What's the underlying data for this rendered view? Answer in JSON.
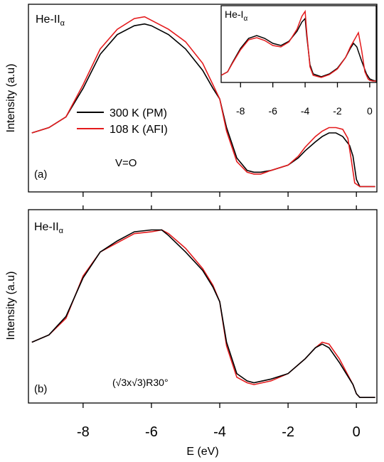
{
  "figure": {
    "xlabel": "E (eV)",
    "ylabel": "Intensity (a.u)",
    "x_ticks": [
      -8,
      -6,
      -4,
      -2,
      0
    ]
  },
  "chart_data": [
    {
      "type": "line",
      "panel": "a",
      "panel_label": "(a)",
      "source_label": {
        "base": "He-II",
        "sub": "α"
      },
      "annotation": "V=O",
      "ylabel": "Intensity (a.u)",
      "xlim": [
        -9.6,
        0.6
      ],
      "ylim": [
        0,
        1.05
      ],
      "legend_position": "center-left",
      "series": [
        {
          "name": "300 K (PM)",
          "color": "#000000",
          "x": [
            -9.5,
            -9.0,
            -8.5,
            -8.0,
            -7.5,
            -7.0,
            -6.5,
            -6.2,
            -6.0,
            -5.5,
            -5.0,
            -4.5,
            -4.2,
            -4.0,
            -3.8,
            -3.5,
            -3.2,
            -3.0,
            -2.8,
            -2.5,
            -2.0,
            -1.7,
            -1.5,
            -1.2,
            -1.0,
            -0.8,
            -0.6,
            -0.4,
            -0.2,
            -0.1,
            0.0,
            0.1,
            0.3,
            0.55
          ],
          "y": [
            0.33,
            0.36,
            0.42,
            0.58,
            0.77,
            0.88,
            0.93,
            0.94,
            0.93,
            0.88,
            0.8,
            0.68,
            0.58,
            0.52,
            0.36,
            0.19,
            0.12,
            0.11,
            0.11,
            0.12,
            0.15,
            0.19,
            0.23,
            0.28,
            0.31,
            0.33,
            0.33,
            0.31,
            0.26,
            0.2,
            0.07,
            0.03,
            0.03,
            0.03
          ]
        },
        {
          "name": "108 K (AFI)",
          "color": "#e41a1c",
          "x": [
            -9.5,
            -9.0,
            -8.5,
            -8.0,
            -7.5,
            -7.0,
            -6.5,
            -6.2,
            -6.0,
            -5.5,
            -5.0,
            -4.5,
            -4.2,
            -4.0,
            -3.8,
            -3.5,
            -3.2,
            -3.0,
            -2.8,
            -2.5,
            -2.0,
            -1.7,
            -1.5,
            -1.2,
            -1.0,
            -0.8,
            -0.6,
            -0.4,
            -0.25,
            -0.15,
            -0.05,
            0.1,
            0.3,
            0.55
          ],
          "y": [
            0.33,
            0.36,
            0.42,
            0.6,
            0.8,
            0.91,
            0.97,
            0.98,
            0.96,
            0.91,
            0.84,
            0.72,
            0.6,
            0.52,
            0.34,
            0.17,
            0.11,
            0.1,
            0.1,
            0.12,
            0.15,
            0.2,
            0.25,
            0.31,
            0.34,
            0.36,
            0.36,
            0.35,
            0.3,
            0.18,
            0.05,
            0.03,
            0.03,
            0.03
          ]
        }
      ]
    },
    {
      "type": "line",
      "panel": "inset",
      "source_label": {
        "base": "He-I",
        "sub": "α"
      },
      "xlim": [
        -9.2,
        0.4
      ],
      "ylim": [
        0,
        1.08
      ],
      "x_ticks": [
        -8,
        -6,
        -4,
        -2,
        0
      ],
      "series": [
        {
          "name": "300 K (PM)",
          "color": "#000000",
          "x": [
            -9.2,
            -8.8,
            -8.5,
            -8.0,
            -7.5,
            -7.0,
            -6.5,
            -6.0,
            -5.5,
            -5.0,
            -4.5,
            -4.2,
            -4.0,
            -3.9,
            -3.7,
            -3.5,
            -3.0,
            -2.5,
            -2.0,
            -1.5,
            -1.2,
            -1.0,
            -0.8,
            -0.5,
            -0.2,
            0.0,
            0.2,
            0.4
          ],
          "y": [
            0.1,
            0.15,
            0.28,
            0.48,
            0.62,
            0.66,
            0.62,
            0.55,
            0.52,
            0.58,
            0.72,
            0.85,
            0.9,
            0.65,
            0.25,
            0.12,
            0.08,
            0.12,
            0.2,
            0.35,
            0.48,
            0.55,
            0.5,
            0.3,
            0.12,
            0.05,
            0.03,
            0.02
          ]
        },
        {
          "name": "108 K (AFI)",
          "color": "#e41a1c",
          "x": [
            -9.2,
            -8.8,
            -8.5,
            -8.0,
            -7.5,
            -7.0,
            -6.5,
            -6.0,
            -5.5,
            -5.0,
            -4.5,
            -4.2,
            -4.0,
            -3.9,
            -3.7,
            -3.5,
            -3.0,
            -2.5,
            -2.0,
            -1.5,
            -1.2,
            -0.9,
            -0.7,
            -0.5,
            -0.3,
            -0.1,
            0.0,
            0.2,
            0.4
          ],
          "y": [
            0.1,
            0.15,
            0.27,
            0.46,
            0.6,
            0.63,
            0.59,
            0.52,
            0.5,
            0.57,
            0.75,
            0.93,
            1.0,
            0.7,
            0.22,
            0.1,
            0.07,
            0.11,
            0.19,
            0.35,
            0.5,
            0.62,
            0.7,
            0.45,
            0.15,
            0.05,
            0.03,
            0.02,
            0.02
          ]
        }
      ]
    },
    {
      "type": "line",
      "panel": "b",
      "panel_label": "(b)",
      "source_label": {
        "base": "He-II",
        "sub": "α"
      },
      "annotation": "(√3x√3)R30°",
      "ylabel": "Intensity (a.u)",
      "xlim": [
        -9.6,
        0.6
      ],
      "ylim": [
        0,
        1.05
      ],
      "series": [
        {
          "name": "300 K (PM)",
          "color": "#000000",
          "x": [
            -9.5,
            -9.0,
            -8.5,
            -8.0,
            -7.5,
            -7.0,
            -6.5,
            -6.0,
            -5.7,
            -5.5,
            -5.0,
            -4.5,
            -4.2,
            -4.0,
            -3.8,
            -3.5,
            -3.2,
            -3.0,
            -2.5,
            -2.0,
            -1.5,
            -1.2,
            -1.0,
            -0.8,
            -0.5,
            -0.3,
            -0.1,
            0.0,
            0.1,
            0.3,
            0.55
          ],
          "y": [
            0.33,
            0.37,
            0.47,
            0.68,
            0.82,
            0.88,
            0.93,
            0.94,
            0.94,
            0.91,
            0.82,
            0.72,
            0.63,
            0.55,
            0.33,
            0.16,
            0.12,
            0.11,
            0.13,
            0.16,
            0.24,
            0.3,
            0.32,
            0.3,
            0.22,
            0.16,
            0.1,
            0.05,
            0.03,
            0.03,
            0.03
          ]
        },
        {
          "name": "108 K (AFI)",
          "color": "#e41a1c",
          "x": [
            -9.5,
            -9.0,
            -8.5,
            -8.0,
            -7.5,
            -7.0,
            -6.5,
            -6.0,
            -5.7,
            -5.5,
            -5.0,
            -4.5,
            -4.2,
            -4.0,
            -3.8,
            -3.5,
            -3.2,
            -3.0,
            -2.5,
            -2.0,
            -1.5,
            -1.2,
            -1.0,
            -0.8,
            -0.5,
            -0.3,
            -0.1,
            0.0,
            0.1,
            0.3,
            0.55
          ],
          "y": [
            0.33,
            0.37,
            0.46,
            0.69,
            0.82,
            0.87,
            0.92,
            0.93,
            0.94,
            0.92,
            0.84,
            0.73,
            0.64,
            0.55,
            0.31,
            0.14,
            0.11,
            0.1,
            0.12,
            0.16,
            0.24,
            0.3,
            0.33,
            0.32,
            0.24,
            0.17,
            0.1,
            0.05,
            0.03,
            0.03,
            0.03
          ]
        }
      ]
    }
  ]
}
